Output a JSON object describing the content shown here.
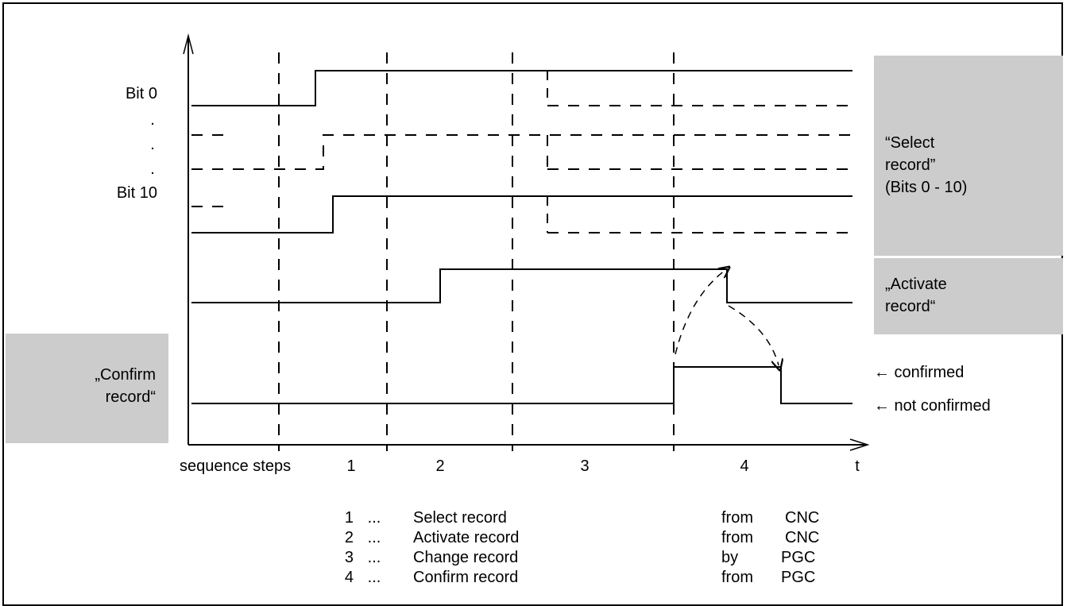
{
  "colors": {
    "ink": "#000000",
    "panel": "#cccccc",
    "background": "#ffffff"
  },
  "signals": {
    "bit0_label": "Bit 0",
    "dots": [
      ".",
      ".",
      "."
    ],
    "bit10_label": "Bit 10"
  },
  "panels": {
    "select_record": [
      "“Select",
      "record”",
      "(Bits 0 - 10)"
    ],
    "activate_record": [
      "„Activate",
      "record“"
    ],
    "confirm_record": [
      "„Confirm",
      "record“"
    ]
  },
  "states": {
    "confirmed": "← confirmed",
    "not_confirmed": "← not confirmed"
  },
  "axis": {
    "steps_label": "sequence steps",
    "step_numbers": [
      "1",
      "2",
      "3",
      "4"
    ],
    "time_label": "t"
  },
  "legend": [
    {
      "num": "1",
      "sep": "...",
      "action": "Select record",
      "source_prefix": "from",
      "source": "CNC"
    },
    {
      "num": "2",
      "sep": "...",
      "action": "Activate record",
      "source_prefix": "from",
      "source": "CNC"
    },
    {
      "num": "3",
      "sep": "...",
      "action": "Change record",
      "source_prefix": "by",
      "source": "PGC"
    },
    {
      "num": "4",
      "sep": "...",
      "action": "Confirm record",
      "source_prefix": "from",
      "source": "PGC"
    }
  ]
}
